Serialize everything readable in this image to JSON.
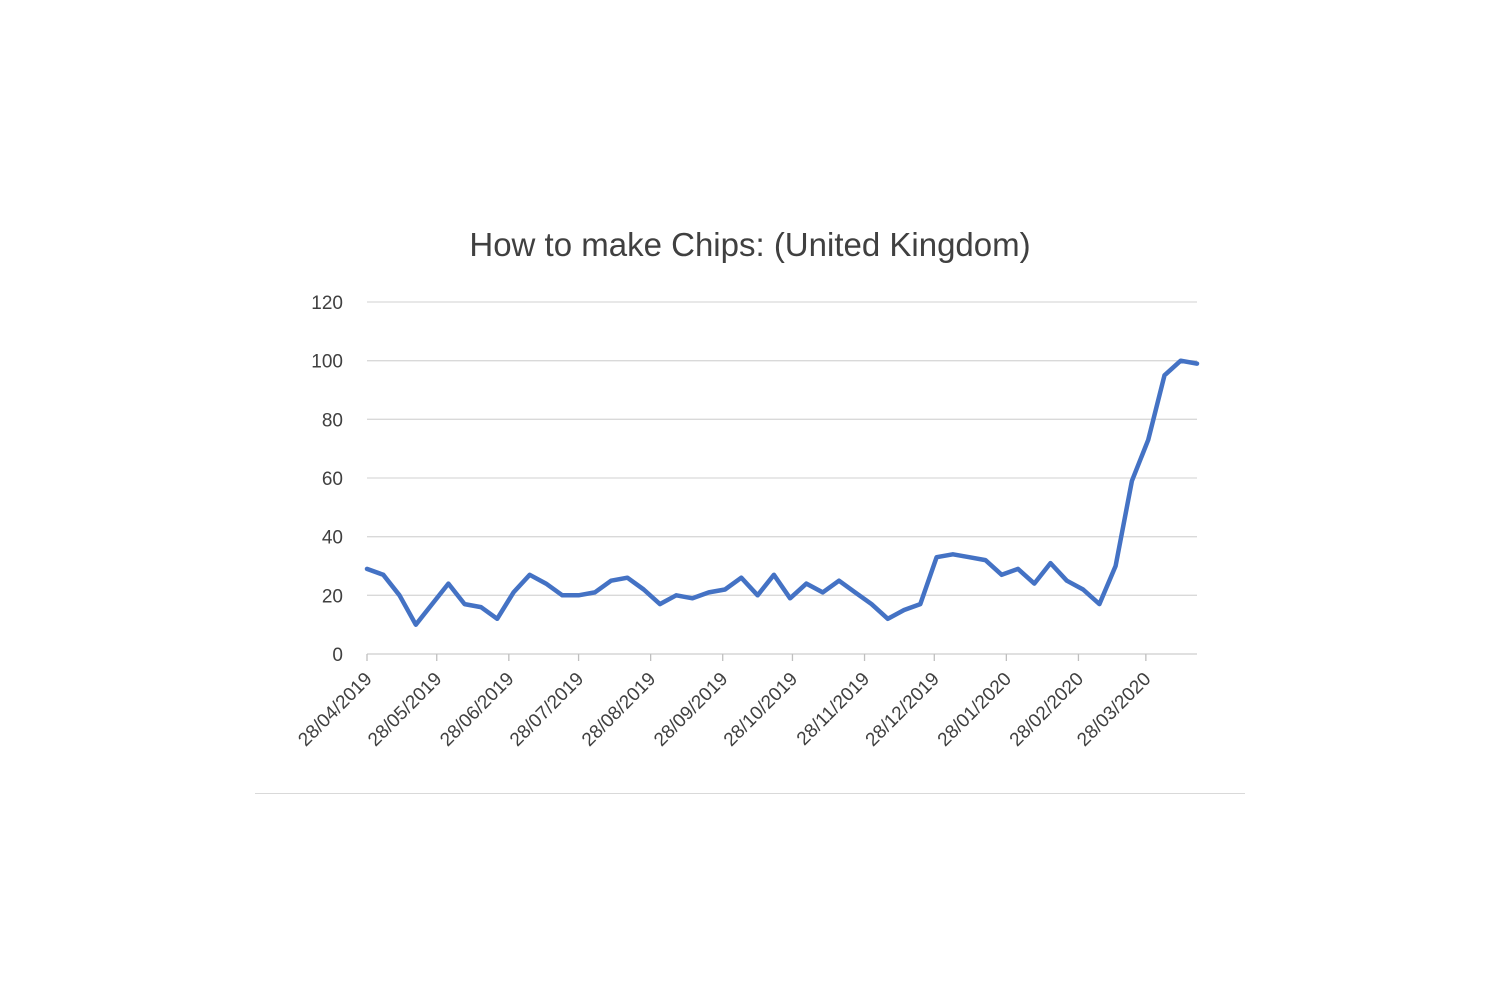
{
  "chart_data": {
    "type": "line",
    "title": "How to make Chips: (United Kingdom)",
    "xlabel": "",
    "ylabel": "",
    "ylim": [
      0,
      120
    ],
    "yticks": [
      "0",
      "20",
      "40",
      "60",
      "80",
      "100",
      "120"
    ],
    "grid": true,
    "legend": "none",
    "x_tick_labels": [
      "28/04/2019",
      "28/05/2019",
      "28/06/2019",
      "28/07/2019",
      "28/08/2019",
      "28/09/2019",
      "28/10/2019",
      "28/11/2019",
      "28/12/2019",
      "28/01/2020",
      "28/02/2020",
      "28/03/2020"
    ],
    "x_tick_dates": [
      "2019-04-28",
      "2019-05-28",
      "2019-06-28",
      "2019-07-28",
      "2019-08-28",
      "2019-09-28",
      "2019-10-28",
      "2019-11-28",
      "2019-12-28",
      "2020-01-28",
      "2020-02-28",
      "2020-03-28"
    ],
    "series": [
      {
        "color": "#4472c4",
        "points": [
          [
            "2019-04-28",
            29
          ],
          [
            "2019-05-05",
            27
          ],
          [
            "2019-05-12",
            20
          ],
          [
            "2019-05-19",
            10
          ],
          [
            "2019-05-26",
            17
          ],
          [
            "2019-06-02",
            24
          ],
          [
            "2019-06-09",
            17
          ],
          [
            "2019-06-16",
            16
          ],
          [
            "2019-06-23",
            12
          ],
          [
            "2019-06-30",
            21
          ],
          [
            "2019-07-07",
            27
          ],
          [
            "2019-07-14",
            24
          ],
          [
            "2019-07-21",
            20
          ],
          [
            "2019-07-28",
            20
          ],
          [
            "2019-08-04",
            21
          ],
          [
            "2019-08-11",
            25
          ],
          [
            "2019-08-18",
            26
          ],
          [
            "2019-08-25",
            22
          ],
          [
            "2019-09-01",
            17
          ],
          [
            "2019-09-08",
            20
          ],
          [
            "2019-09-15",
            19
          ],
          [
            "2019-09-22",
            21
          ],
          [
            "2019-09-29",
            22
          ],
          [
            "2019-10-06",
            26
          ],
          [
            "2019-10-13",
            20
          ],
          [
            "2019-10-20",
            27
          ],
          [
            "2019-10-27",
            19
          ],
          [
            "2019-11-03",
            24
          ],
          [
            "2019-11-10",
            21
          ],
          [
            "2019-11-17",
            25
          ],
          [
            "2019-11-24",
            21
          ],
          [
            "2019-12-01",
            17
          ],
          [
            "2019-12-08",
            12
          ],
          [
            "2019-12-15",
            15
          ],
          [
            "2019-12-22",
            17
          ],
          [
            "2019-12-29",
            33
          ],
          [
            "2020-01-05",
            34
          ],
          [
            "2020-01-12",
            33
          ],
          [
            "2020-01-19",
            32
          ],
          [
            "2020-01-26",
            27
          ],
          [
            "2020-02-02",
            29
          ],
          [
            "2020-02-09",
            24
          ],
          [
            "2020-02-16",
            31
          ],
          [
            "2020-02-23",
            25
          ],
          [
            "2020-03-01",
            22
          ],
          [
            "2020-03-08",
            17
          ],
          [
            "2020-03-15",
            30
          ],
          [
            "2020-03-22",
            59
          ],
          [
            "2020-03-29",
            73
          ],
          [
            "2020-04-05",
            95
          ],
          [
            "2020-04-12",
            100
          ],
          [
            "2020-04-19",
            99
          ]
        ]
      }
    ]
  }
}
